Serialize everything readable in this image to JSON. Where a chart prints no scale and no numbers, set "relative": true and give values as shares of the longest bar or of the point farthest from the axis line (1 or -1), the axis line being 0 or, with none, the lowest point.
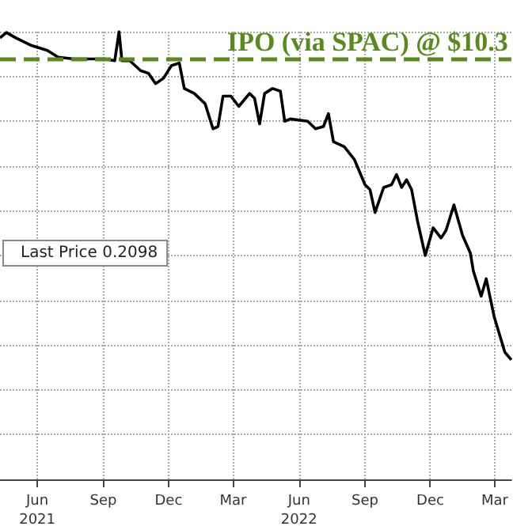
{
  "chart_data": {
    "type": "line",
    "relative": true,
    "grid": true,
    "legend": "left",
    "marker": "none",
    "line_style": "solid",
    "xlim": [
      "2021-04-10",
      "2023-03-24"
    ],
    "xticks": [
      {
        "value": "2021-06-01",
        "label": "Jun\n2021"
      },
      {
        "value": "2021-09-01",
        "label": "Sep"
      },
      {
        "value": "2021-12-01",
        "label": "Dec"
      },
      {
        "value": "2022-03-01",
        "label": "Mar"
      },
      {
        "value": "2022-06-01",
        "label": "Jun\n2022"
      },
      {
        "value": "2022-09-01",
        "label": "Sep"
      },
      {
        "value": "2022-12-01",
        "label": "Dec"
      },
      {
        "value": "2023-03-01",
        "label": "Mar"
      }
    ],
    "ref_lines": [
      {
        "axis": "y",
        "value": 0.94,
        "label": "IPO (via SPAC) @ $10.3",
        "color": "#5a8a1e",
        "line_style": "dashed"
      }
    ],
    "series": [
      {
        "name": "Last Price 0.2098",
        "color": "#000000",
        "x": [
          "2021-04-10",
          "2021-04-19",
          "2021-05-02",
          "2021-05-24",
          "2021-06-15",
          "2021-06-30",
          "2021-07-22",
          "2021-09-03",
          "2021-09-17",
          "2021-09-23",
          "2021-09-27",
          "2021-10-08",
          "2021-10-23",
          "2021-11-03",
          "2021-11-13",
          "2021-11-24",
          "2021-12-05",
          "2021-12-16",
          "2021-12-23",
          "2022-01-06",
          "2022-01-21",
          "2022-02-01",
          "2022-02-08",
          "2022-02-15",
          "2022-02-26",
          "2022-03-09",
          "2022-03-24",
          "2022-03-31",
          "2022-04-07",
          "2022-04-14",
          "2022-04-25",
          "2022-05-06",
          "2022-05-12",
          "2022-05-20",
          "2022-06-13",
          "2022-06-24",
          "2022-07-05",
          "2022-07-12",
          "2022-07-19",
          "2022-08-03",
          "2022-08-17",
          "2022-09-01",
          "2022-09-08",
          "2022-09-15",
          "2022-09-27",
          "2022-10-08",
          "2022-10-15",
          "2022-10-22",
          "2022-10-29",
          "2022-11-05",
          "2022-11-13",
          "2022-11-24",
          "2022-12-05",
          "2022-12-16",
          "2022-12-23",
          "2023-01-03",
          "2023-01-15",
          "2023-01-26",
          "2023-01-30",
          "2023-02-10",
          "2023-02-17",
          "2023-02-28",
          "2023-03-15",
          "2023-03-24"
        ],
        "values": [
          0.986,
          0.998,
          0.986,
          0.969,
          0.958,
          0.943,
          0.939,
          0.939,
          0.935,
          1.0,
          0.935,
          0.935,
          0.913,
          0.907,
          0.884,
          0.896,
          0.924,
          0.93,
          0.873,
          0.862,
          0.839,
          0.783,
          0.788,
          0.856,
          0.856,
          0.833,
          0.862,
          0.851,
          0.794,
          0.862,
          0.873,
          0.867,
          0.8,
          0.805,
          0.8,
          0.783,
          0.788,
          0.817,
          0.754,
          0.743,
          0.715,
          0.658,
          0.647,
          0.596,
          0.652,
          0.658,
          0.681,
          0.652,
          0.669,
          0.647,
          0.579,
          0.5,
          0.562,
          0.539,
          0.556,
          0.613,
          0.545,
          0.505,
          0.466,
          0.409,
          0.448,
          0.364,
          0.284,
          0.267
        ]
      }
    ]
  }
}
